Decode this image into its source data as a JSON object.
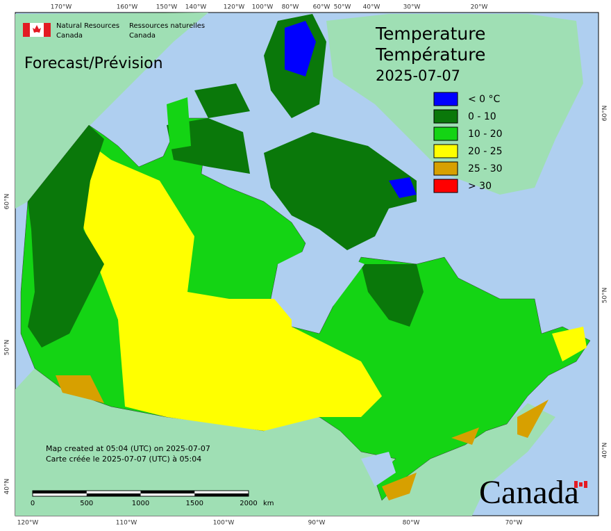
{
  "agency": {
    "en": [
      "Natural Resources",
      "Canada"
    ],
    "fr": [
      "Ressources naturelles",
      "Canada"
    ]
  },
  "forecast_label": "Forecast/Prévision",
  "title": [
    "Temperature",
    "Température"
  ],
  "date": "2025-07-07",
  "legend": [
    {
      "label": "< 0 °C",
      "color": "#0000ff"
    },
    {
      "label": "0 - 10",
      "color": "#0a780a"
    },
    {
      "label": "10 - 20",
      "color": "#14d414"
    },
    {
      "label": "20 - 25",
      "color": "#ffff00"
    },
    {
      "label": "25 - 30",
      "color": "#d7a000"
    },
    {
      "label": "> 30",
      "color": "#ff0000"
    }
  ],
  "graticule": {
    "top": [
      "170°W",
      "160°W",
      "150°W",
      "140°W",
      "120°W",
      "100°W",
      "80°W",
      "60°W",
      "50°W",
      "40°W",
      "30°W",
      "20°W"
    ],
    "bottom": [
      "120°W",
      "110°W",
      "100°W",
      "90°W",
      "80°W",
      "70°W"
    ],
    "left": [
      "60°N",
      "50°N",
      "40°N"
    ],
    "right": [
      "60°N",
      "50°N",
      "40°N"
    ]
  },
  "credits": [
    "Map created at 05:04 (UTC) on 2025-07-07",
    "Carte créée le 2025-07-07 (UTC) à 05:04"
  ],
  "scale_bar": {
    "ticks": [
      0,
      500,
      1000,
      1500,
      2000
    ],
    "unit": "km"
  },
  "wordmark": "Canada"
}
